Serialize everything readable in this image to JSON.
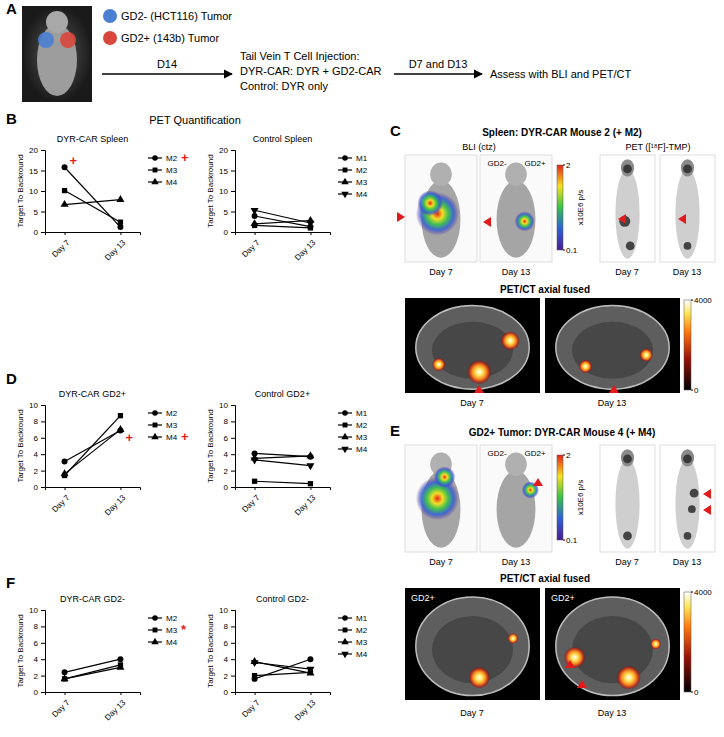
{
  "panel_a": {
    "label": "A",
    "legend": [
      {
        "text": "GD2- (HCT116) Tumor",
        "color": "#4a7fd1"
      },
      {
        "text": "GD2+ (143b) Tumor",
        "color": "#d9463c"
      }
    ],
    "step1": "D14",
    "injection": [
      "Tail Vein T Cell Injection:",
      "DYR-CAR: DYR + GD2-CAR",
      "Control: DYR only"
    ],
    "step2": "D7 and D13",
    "assess": "Assess with BLI and PET/CT"
  },
  "panel_b": {
    "label": "B",
    "title": "PET Quantification"
  },
  "panel_d": {
    "label": "D"
  },
  "panel_f": {
    "label": "F"
  },
  "chart_data": [
    {
      "type": "line",
      "title": "DYR-CAR Spleen",
      "y_label": "Target To Backround",
      "categories": [
        "Day 7",
        "Day 13"
      ],
      "series": [
        {
          "name": "M2",
          "color": "#000000",
          "marker": "circle",
          "values": [
            15.8,
            1.2
          ]
        },
        {
          "name": "M3",
          "color": "#000000",
          "marker": "square",
          "values": [
            10.1,
            2.4
          ]
        },
        {
          "name": "M4",
          "color": "#000000",
          "marker": "triangle",
          "values": [
            6.7,
            7.9
          ]
        }
      ],
      "ylim": [
        0,
        20
      ],
      "yticks": [
        0,
        5,
        10,
        15,
        20
      ],
      "legend": "right",
      "annotations": [
        {
          "text": "+",
          "x": "Day 7",
          "y": 17.3,
          "color": "#e31a1c"
        },
        {
          "text": "+",
          "legend_entry": "M2",
          "color": "#e31a1c"
        }
      ]
    },
    {
      "type": "line",
      "title": "Control Spleen",
      "y_label": "Target To Backround",
      "categories": [
        "Day 7",
        "Day 13"
      ],
      "series": [
        {
          "name": "M1",
          "color": "#000000",
          "marker": "circle",
          "values": [
            3.9,
            1.3
          ]
        },
        {
          "name": "M2",
          "color": "#000000",
          "marker": "square",
          "values": [
            1.6,
            1.0
          ]
        },
        {
          "name": "M3",
          "color": "#000000",
          "marker": "triangle",
          "values": [
            2.0,
            2.8
          ]
        },
        {
          "name": "M4",
          "color": "#000000",
          "marker": "triangle-down",
          "values": [
            5.3,
            2.2
          ]
        }
      ],
      "ylim": [
        0,
        20
      ],
      "yticks": [
        0,
        5,
        10,
        15,
        20
      ],
      "legend": "right"
    },
    {
      "type": "line",
      "title": "DYR-CAR GD2+",
      "y_label": "Target To Backround",
      "categories": [
        "Day 7",
        "Day 13"
      ],
      "series": [
        {
          "name": "M2",
          "color": "#000000",
          "marker": "circle",
          "values": [
            3.1,
            6.9
          ]
        },
        {
          "name": "M3",
          "color": "#000000",
          "marker": "square",
          "values": [
            1.4,
            8.7
          ]
        },
        {
          "name": "M4",
          "color": "#000000",
          "marker": "triangle",
          "values": [
            1.6,
            7.0
          ]
        }
      ],
      "ylim": [
        0,
        10
      ],
      "yticks": [
        0,
        2,
        4,
        6,
        8,
        10
      ],
      "legend": "right",
      "annotations": [
        {
          "text": "+",
          "x": "Day 13",
          "y": 6.0,
          "color": "#e31a1c"
        },
        {
          "text": "+",
          "legend_entry": "M4",
          "color": "#e31a1c"
        }
      ]
    },
    {
      "type": "line",
      "title": "Control GD2+",
      "y_label": "Target To Backround",
      "categories": [
        "Day 7",
        "Day 13"
      ],
      "series": [
        {
          "name": "M1",
          "color": "#000000",
          "marker": "circle",
          "values": [
            4.1,
            3.7
          ]
        },
        {
          "name": "M2",
          "color": "#000000",
          "marker": "square",
          "values": [
            0.7,
            0.4
          ]
        },
        {
          "name": "M3",
          "color": "#000000",
          "marker": "triangle",
          "values": [
            3.5,
            3.8
          ]
        },
        {
          "name": "M4",
          "color": "#000000",
          "marker": "triangle-down",
          "values": [
            3.3,
            2.6
          ]
        }
      ],
      "ylim": [
        0,
        10
      ],
      "yticks": [
        0,
        2,
        4,
        6,
        8,
        10
      ],
      "legend": "right"
    },
    {
      "type": "line",
      "title": "DYR-CAR GD2-",
      "y_label": "Target To Backround",
      "categories": [
        "Day 7",
        "Day 13"
      ],
      "series": [
        {
          "name": "M2",
          "color": "#000000",
          "marker": "circle",
          "values": [
            2.4,
            4.0
          ]
        },
        {
          "name": "M3",
          "color": "#000000",
          "marker": "square",
          "values": [
            1.6,
            3.3
          ]
        },
        {
          "name": "M4",
          "color": "#000000",
          "marker": "triangle",
          "values": [
            1.6,
            3.0
          ]
        }
      ],
      "ylim": [
        0,
        10
      ],
      "yticks": [
        0,
        2,
        4,
        6,
        8,
        10
      ],
      "legend": "right",
      "annotations": [
        {
          "text": "*",
          "legend_entry": "M3",
          "color": "#e31a1c"
        }
      ]
    },
    {
      "type": "line",
      "title": "Control GD2-",
      "y_label": "Target To Backround",
      "categories": [
        "Day 7",
        "Day 13"
      ],
      "series": [
        {
          "name": "M1",
          "color": "#000000",
          "marker": "circle",
          "values": [
            1.6,
            4.0
          ]
        },
        {
          "name": "M2",
          "color": "#000000",
          "marker": "square",
          "values": [
            2.0,
            2.4
          ]
        },
        {
          "name": "M3",
          "color": "#000000",
          "marker": "triangle",
          "values": [
            3.7,
            2.3
          ]
        },
        {
          "name": "M4",
          "color": "#000000",
          "marker": "triangle-down",
          "values": [
            3.6,
            2.8
          ]
        }
      ],
      "ylim": [
        0,
        10
      ],
      "yticks": [
        0,
        2,
        4,
        6,
        8,
        10
      ],
      "legend": "right"
    }
  ],
  "panel_c": {
    "label": "C",
    "title": "Spleen: DYR-CAR Mouse 2 (+ M2)",
    "bli_label": "BLI (ctz)",
    "pet_label": "PET ([¹⁸F]-TMP)",
    "days": [
      "Day 7",
      "Day 13"
    ],
    "bli_tags": [
      "GD2-",
      "GD2+"
    ],
    "bli_colorbar": {
      "label": "x10E6 p/s",
      "range": [
        0.1,
        2
      ],
      "ticks": [
        0.1,
        2
      ]
    },
    "pet_ct_title": "PET/CT axial fused",
    "pet_ct_colorbar": {
      "range": [
        0,
        4000
      ],
      "ticks": [
        0,
        4000
      ]
    }
  },
  "panel_e": {
    "label": "E",
    "title": "GD2+ Tumor: DYR-CAR Mouse 4 (+ M4)",
    "days": [
      "Day 7",
      "Day 13"
    ],
    "bli_tags": [
      "GD2-",
      "GD2+"
    ],
    "bli_colorbar": {
      "label": "x10E6 p/s",
      "range": [
        0.1,
        2
      ],
      "ticks": [
        0.1,
        2
      ]
    },
    "pet_ct_title": "PET/CT axial fused",
    "axial_tag": "GD2+",
    "pet_ct_colorbar": {
      "range": [
        0,
        4000
      ],
      "ticks": [
        0,
        4000
      ]
    }
  }
}
